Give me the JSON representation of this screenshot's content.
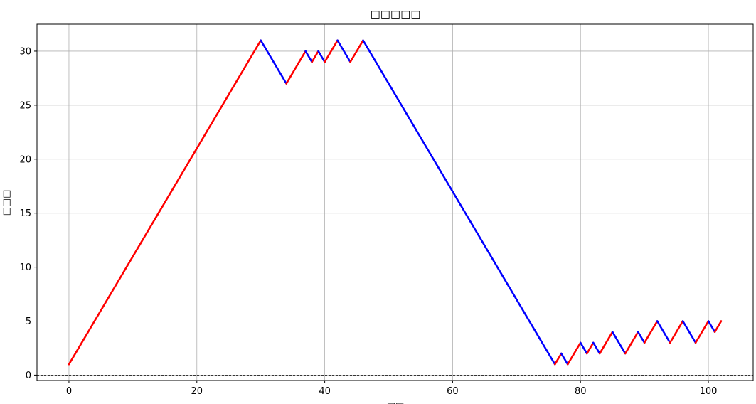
{
  "chart_data": {
    "type": "line",
    "title": "□□□□□",
    "xlabel": "□□",
    "ylabel": "□□□",
    "xlim": [
      -5,
      107
    ],
    "ylim": [
      -0.5,
      32.5
    ],
    "xticks": [
      0,
      20,
      40,
      60,
      80,
      100
    ],
    "yticks": [
      0,
      5,
      10,
      15,
      20,
      25,
      30
    ],
    "grid": true,
    "reference_line": {
      "y": 0,
      "style": "dashed",
      "color": "#000000"
    },
    "colors": {
      "increasing": "#ff0000",
      "decreasing": "#0000ff"
    },
    "points": [
      [
        0,
        1
      ],
      [
        30,
        31
      ],
      [
        34,
        27
      ],
      [
        37,
        30
      ],
      [
        38,
        29
      ],
      [
        39,
        30
      ],
      [
        40,
        29
      ],
      [
        42,
        31
      ],
      [
        44,
        29
      ],
      [
        46,
        31
      ],
      [
        76,
        1
      ],
      [
        77,
        2
      ],
      [
        78,
        1
      ],
      [
        80,
        3
      ],
      [
        81,
        2
      ],
      [
        82,
        3
      ],
      [
        83,
        2
      ],
      [
        85,
        4
      ],
      [
        87,
        2
      ],
      [
        89,
        4
      ],
      [
        90,
        3
      ],
      [
        92,
        5
      ],
      [
        94,
        3
      ],
      [
        96,
        5
      ],
      [
        98,
        3
      ],
      [
        100,
        5
      ],
      [
        101,
        4
      ],
      [
        102,
        5
      ]
    ]
  }
}
